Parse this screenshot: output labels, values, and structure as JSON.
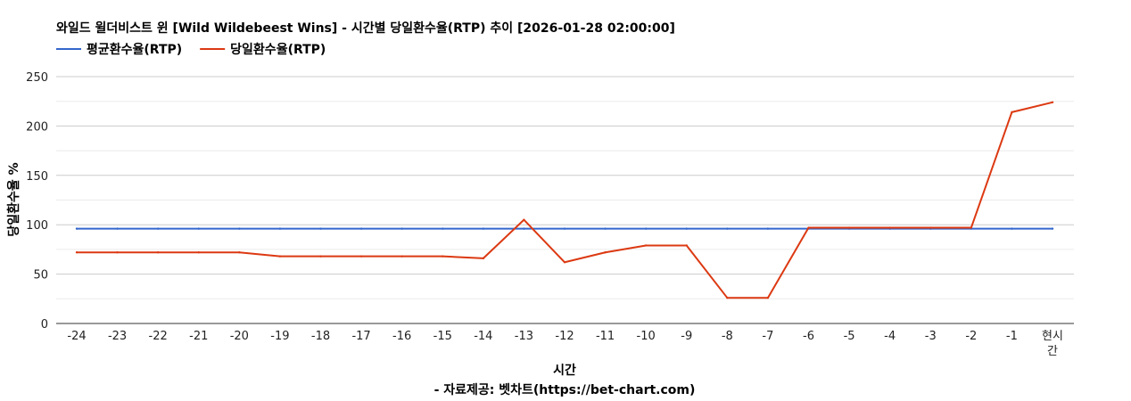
{
  "colors": {
    "avg": "#3366cc",
    "daily": "#dc3912",
    "grid": "#cccccc",
    "grid_minor": "#ebebeb",
    "axis": "#333333"
  },
  "chart_data": {
    "type": "line",
    "title": "와일드 윌더비스트 윈 [Wild Wildebeest Wins] - 시간별 당일환수율(RTP) 추이 [2026-01-28 02:00:00]",
    "xlabel": "시간",
    "ylabel": "당일환수율 %",
    "credit": "- 자료제공: 벳차트(https://bet-chart.com)",
    "categories": [
      "-24",
      "-23",
      "-22",
      "-21",
      "-20",
      "-19",
      "-18",
      "-17",
      "-16",
      "-15",
      "-14",
      "-13",
      "-12",
      "-11",
      "-10",
      "-9",
      "-8",
      "-7",
      "-6",
      "-5",
      "-4",
      "-3",
      "-2",
      "-1",
      "현시간"
    ],
    "yticks": [
      0,
      50,
      100,
      150,
      200,
      250
    ],
    "ylim": [
      0,
      250
    ],
    "grid": true,
    "legend_position": "top-left",
    "series": [
      {
        "name": "평균환수율(RTP)",
        "color_key": "avg",
        "values": [
          96,
          96,
          96,
          96,
          96,
          96,
          96,
          96,
          96,
          96,
          96,
          96,
          96,
          96,
          96,
          96,
          96,
          96,
          96,
          96,
          96,
          96,
          96,
          96,
          96
        ]
      },
      {
        "name": "당일환수율(RTP)",
        "color_key": "daily",
        "values": [
          72,
          72,
          72,
          72,
          72,
          68,
          68,
          68,
          68,
          68,
          66,
          105,
          62,
          72,
          79,
          79,
          26,
          26,
          97,
          97,
          97,
          97,
          97,
          214,
          224
        ]
      }
    ]
  }
}
